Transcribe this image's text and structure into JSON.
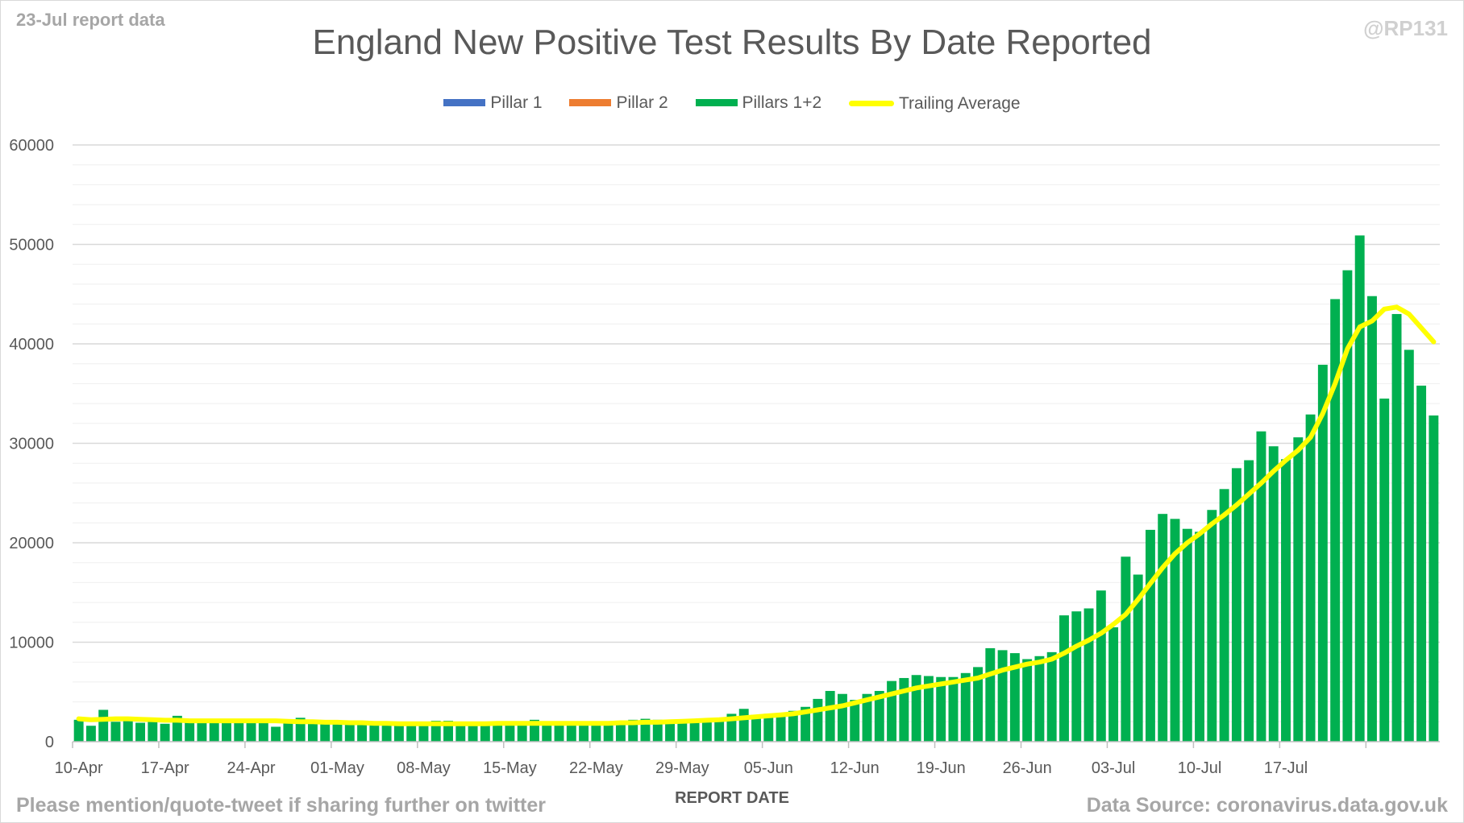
{
  "header": {
    "note": "23-Jul report data",
    "handle": "@RP131",
    "title": "England New Positive Test Results By Date Reported"
  },
  "footer": {
    "left": "Please mention/quote-tweet if sharing further on twitter",
    "right": "Data Source: coronavirus.data.gov.uk"
  },
  "colors": {
    "pillar1": "#4472c4",
    "pillar2": "#ed7d31",
    "pillars12": "#00b050",
    "trailing": "#ffff00",
    "grid_major": "#d9d9d9",
    "grid_minor": "#efefef"
  },
  "chart_data": {
    "type": "bar",
    "xlabel": "REPORT DATE",
    "ylabel": "",
    "ylim": [
      0,
      60000
    ],
    "yticks": [
      0,
      10000,
      20000,
      30000,
      40000,
      50000,
      60000
    ],
    "xtick_labels": [
      "10-Apr",
      "17-Apr",
      "24-Apr",
      "01-May",
      "08-May",
      "15-May",
      "22-May",
      "29-May",
      "05-Jun",
      "12-Jun",
      "19-Jun",
      "26-Jun",
      "03-Jul",
      "10-Jul",
      "17-Jul"
    ],
    "x_start": "2021-04-10",
    "x_end": "2021-07-23",
    "grid": true,
    "legend_position": "top",
    "legend": [
      "Pillar 1",
      "Pillar 2",
      "Pillars 1+2",
      "Trailing Average"
    ],
    "series": [
      {
        "name": "Pillars 1+2",
        "type": "bar",
        "values": [
          2200,
          1600,
          3200,
          2000,
          2100,
          1900,
          2000,
          1800,
          2600,
          2100,
          2000,
          2100,
          2000,
          2200,
          1900,
          2000,
          1500,
          2000,
          2400,
          2100,
          1800,
          1900,
          1800,
          1800,
          1800,
          1700,
          1700,
          1800,
          1800,
          2100,
          2100,
          1900,
          1800,
          1800,
          1900,
          2000,
          2000,
          2200,
          2000,
          1800,
          1900,
          1800,
          1700,
          1700,
          1900,
          2200,
          2300,
          2200,
          2200,
          2200,
          2100,
          2200,
          2400,
          2800,
          3300,
          2700,
          2800,
          2800,
          3100,
          3500,
          4300,
          5100,
          4800,
          4200,
          4800,
          5100,
          6100,
          6400,
          6700,
          6600,
          6500,
          6500,
          6900,
          7500,
          9400,
          9200,
          8900,
          8300,
          8600,
          9000,
          12700,
          13100,
          13400,
          15200,
          11500,
          18600,
          16800,
          21300,
          22900,
          22400,
          21400,
          21100,
          23300,
          25400,
          27500,
          28300,
          31200,
          29700,
          28400,
          30600,
          32900,
          37900,
          44500,
          47400,
          50900,
          44800,
          34500,
          43000,
          39400,
          35800,
          32800
        ]
      },
      {
        "name": "Trailing Average",
        "type": "line",
        "values": [
          2300,
          2200,
          2250,
          2300,
          2300,
          2250,
          2200,
          2150,
          2150,
          2100,
          2100,
          2100,
          2100,
          2100,
          2100,
          2100,
          2100,
          2050,
          2000,
          2000,
          1950,
          1950,
          1900,
          1900,
          1850,
          1850,
          1800,
          1800,
          1800,
          1800,
          1800,
          1800,
          1800,
          1800,
          1850,
          1850,
          1850,
          1850,
          1850,
          1850,
          1850,
          1850,
          1850,
          1850,
          1900,
          1900,
          1950,
          1950,
          2000,
          2050,
          2100,
          2150,
          2200,
          2300,
          2400,
          2500,
          2600,
          2700,
          2800,
          3000,
          3200,
          3400,
          3600,
          3900,
          4200,
          4500,
          4800,
          5100,
          5400,
          5600,
          5800,
          6000,
          6200,
          6400,
          6800,
          7200,
          7500,
          7800,
          8000,
          8300,
          8900,
          9600,
          10200,
          10900,
          11800,
          12800,
          14300,
          15900,
          17500,
          18900,
          20000,
          20900,
          21900,
          22800,
          23800,
          24900,
          26000,
          27200,
          28300,
          29300,
          30600,
          33000,
          36000,
          39500,
          41700,
          42300,
          43500,
          43700,
          43000,
          41600,
          40200
        ]
      }
    ]
  }
}
